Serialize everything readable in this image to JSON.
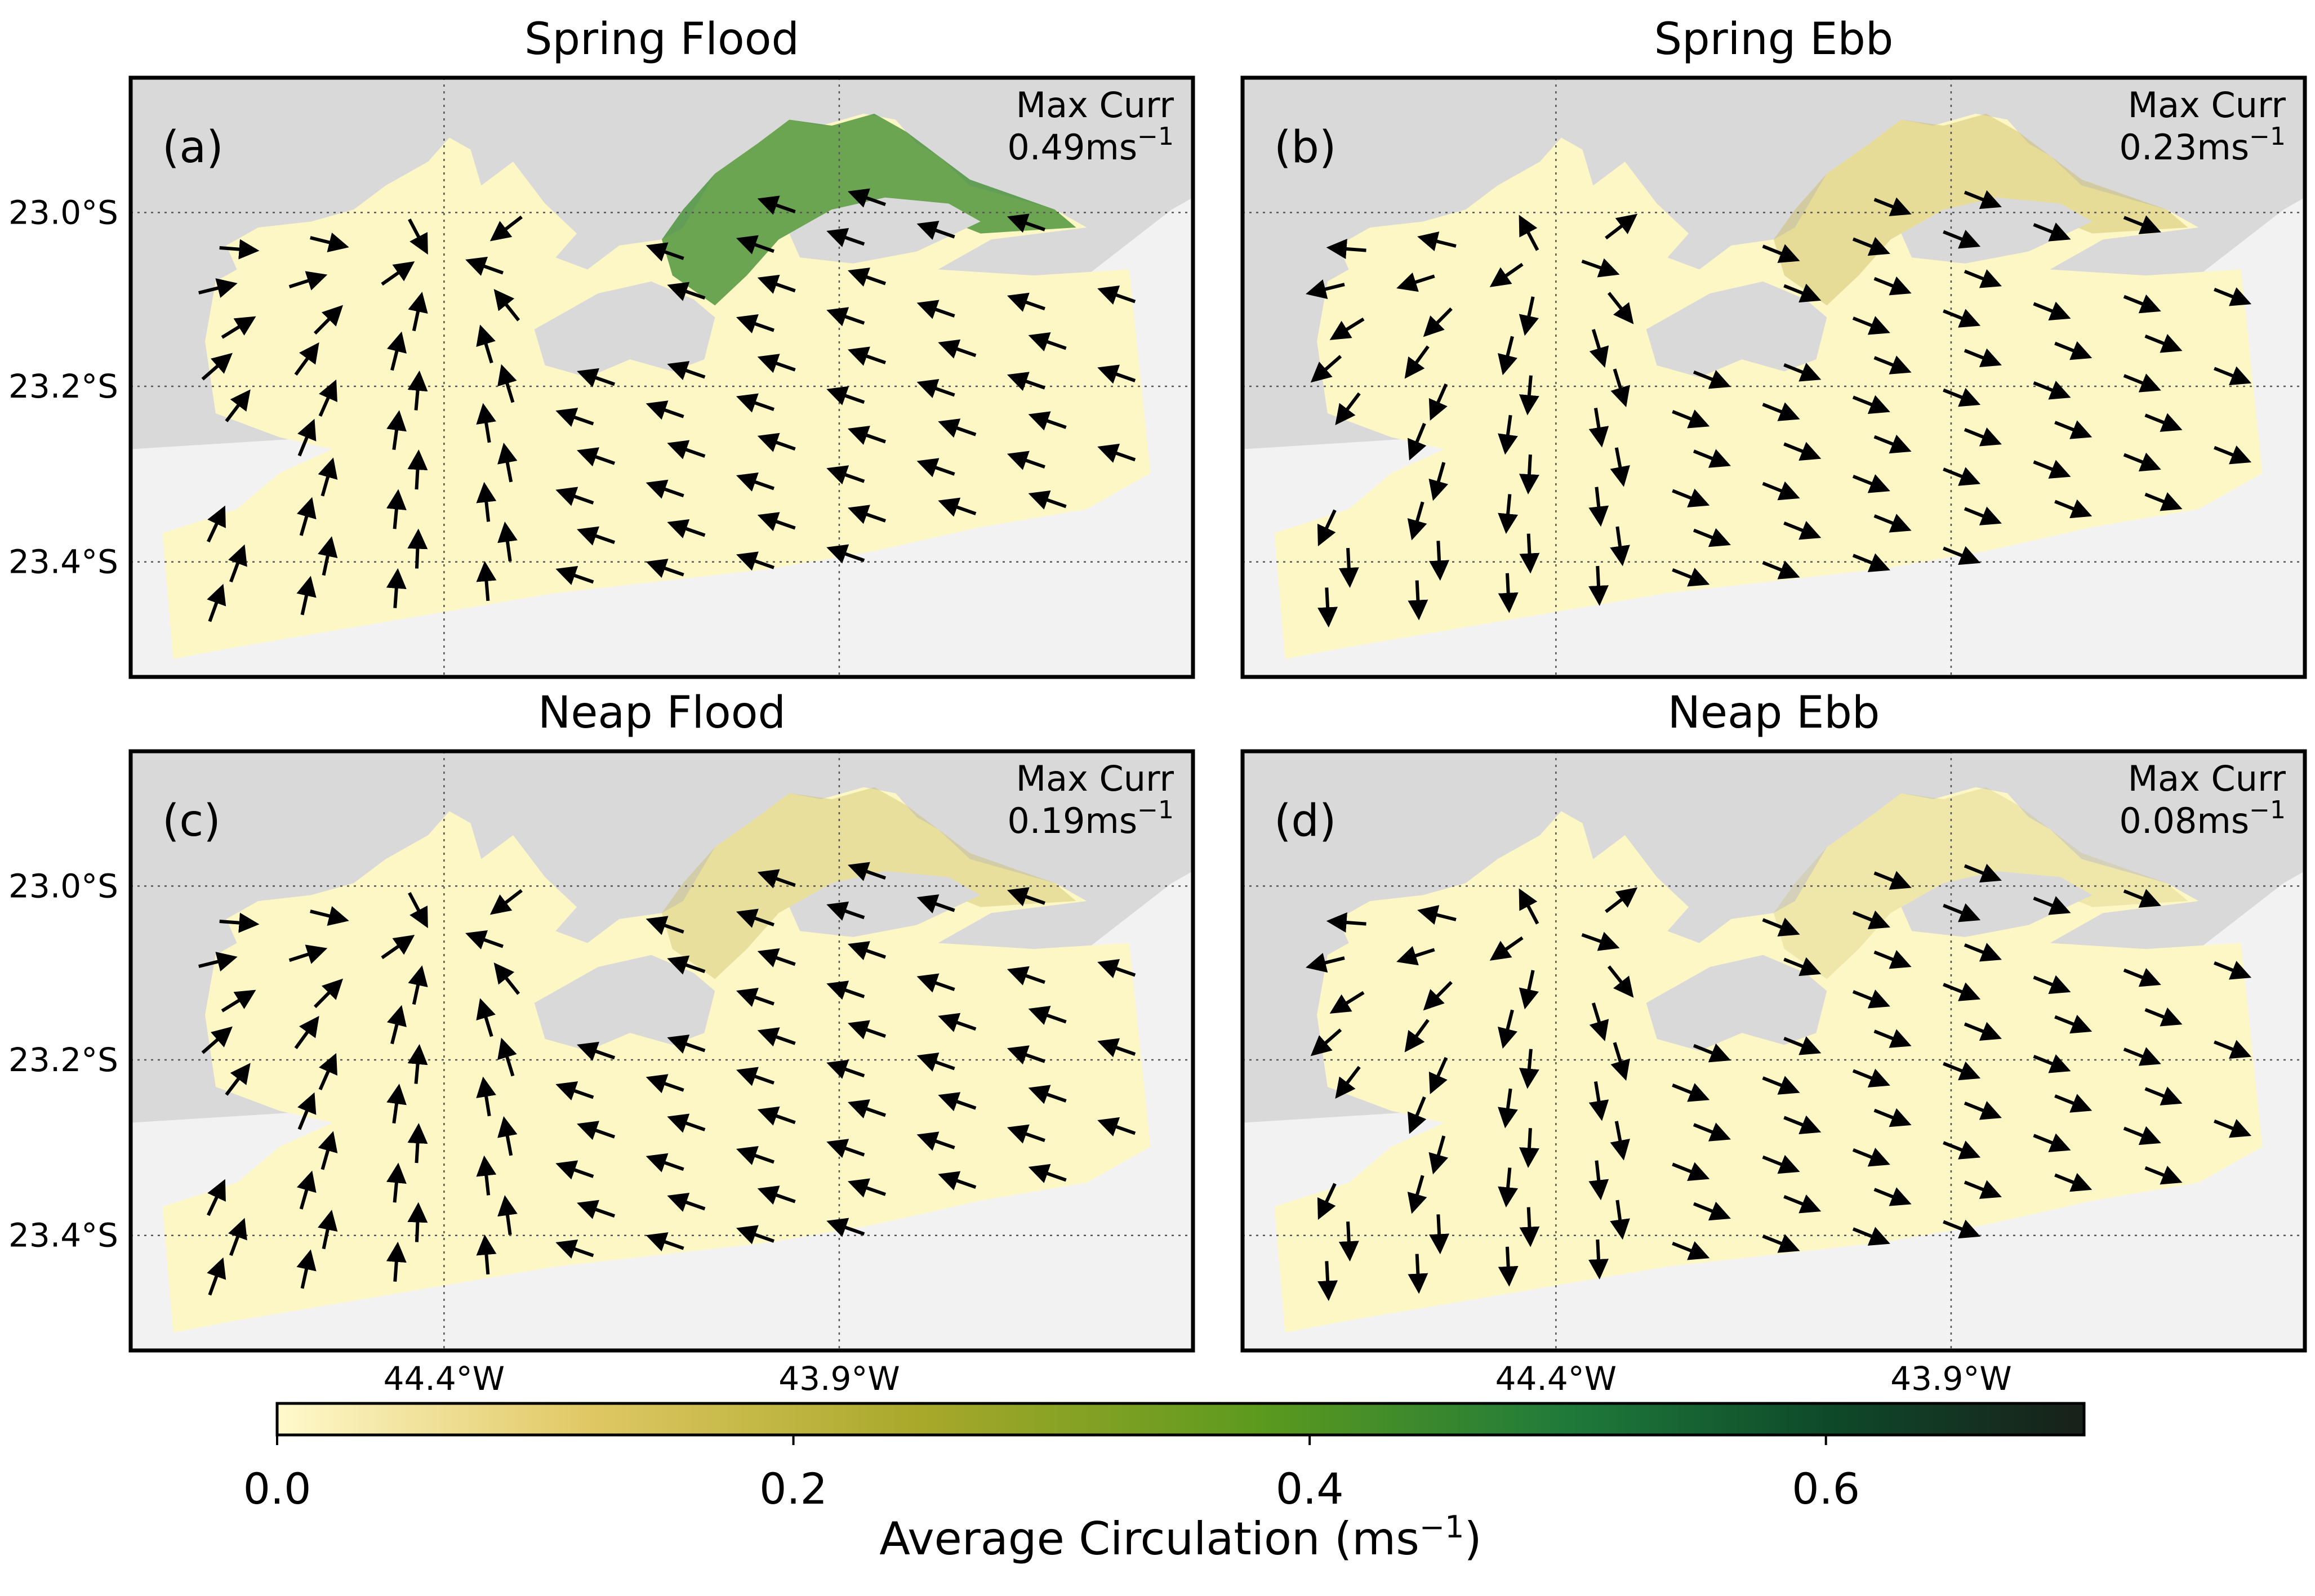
{
  "chart_data": {
    "type": "heatmap",
    "description_kind": "map",
    "lat_ticks": [
      "23.0°S",
      "23.2°S",
      "23.4°S"
    ],
    "lon_ticks": [
      "44.4°W",
      "43.9°W"
    ],
    "grid": true,
    "colors": {
      "land_upper": "#d9d9d9",
      "land_lower": "#f2f2f2",
      "water_low": "#fdf7c5",
      "water_mid": "#c9b95a",
      "water_high": "#3a8a2a"
    },
    "panels": [
      {
        "id": "a",
        "title": "Spring Flood",
        "letter": "(a)",
        "max_label": "Max Curr",
        "max_value": "0.49ms",
        "max_exp": "−1",
        "max_current": 0.49,
        "flow": "flood"
      },
      {
        "id": "b",
        "title": "Spring Ebb",
        "letter": "(b)",
        "max_label": "Max Curr",
        "max_value": "0.23ms",
        "max_exp": "−1",
        "max_current": 0.23,
        "flow": "ebb"
      },
      {
        "id": "c",
        "title": "Neap Flood",
        "letter": "(c)",
        "max_label": "Max Curr",
        "max_value": "0.19ms",
        "max_exp": "−1",
        "max_current": 0.19,
        "flow": "flood"
      },
      {
        "id": "d",
        "title": "Neap Ebb",
        "letter": "(d)",
        "max_label": "Max Curr",
        "max_value": "0.08ms",
        "max_exp": "−1",
        "max_current": 0.08,
        "flow": "ebb"
      }
    ],
    "colorbar": {
      "label": "Average Circulation (ms",
      "label_exp": "−1",
      "label_close": ")",
      "min": 0.0,
      "max": 0.7,
      "ticks": [
        0.0,
        0.2,
        0.4,
        0.6
      ],
      "tick_labels": [
        "0.0",
        "0.2",
        "0.4",
        "0.6"
      ],
      "stops": [
        {
          "v": 0.0,
          "c": "#fff9cc"
        },
        {
          "v": 0.12,
          "c": "#e0c864"
        },
        {
          "v": 0.25,
          "c": "#a8a82a"
        },
        {
          "v": 0.38,
          "c": "#5c9a1e"
        },
        {
          "v": 0.5,
          "c": "#1f7a3a"
        },
        {
          "v": 0.6,
          "c": "#0e4a2a"
        },
        {
          "v": 0.7,
          "c": "#18201a"
        }
      ]
    }
  }
}
